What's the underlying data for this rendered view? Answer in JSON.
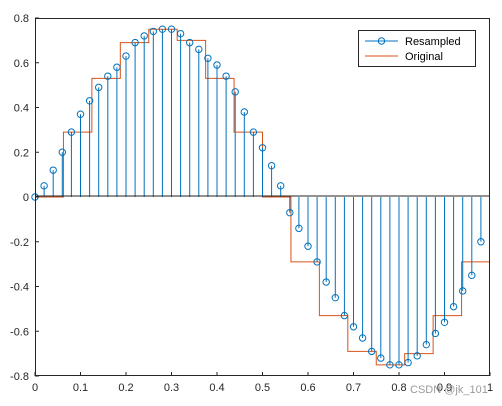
{
  "chart_data": {
    "type": "line",
    "title": "",
    "xlabel": "",
    "ylabel": "",
    "xlim": [
      0,
      1
    ],
    "ylim": [
      -0.8,
      0.8
    ],
    "xticks": [
      0,
      0.1,
      0.2,
      0.3,
      0.4,
      0.5,
      0.6,
      0.7,
      0.8,
      0.9,
      1
    ],
    "xtick_labels": [
      "0",
      "0.1",
      "0.2",
      "0.3",
      "0.4",
      "0.5",
      "0.6",
      "0.7",
      "0.8",
      "0.9",
      "1"
    ],
    "yticks": [
      -0.8,
      -0.6,
      -0.4,
      -0.2,
      0,
      0.2,
      0.4,
      0.6,
      0.8
    ],
    "ytick_labels": [
      "-0.8",
      "-0.6",
      "-0.4",
      "-0.2",
      "0",
      "0.2",
      "0.4",
      "0.6",
      "0.8"
    ],
    "grid": false,
    "legend_position": "top-right",
    "colors": {
      "resampled": "#0072BD",
      "original": "#D95319"
    },
    "series": [
      {
        "name": "Resampled",
        "style": "stem",
        "x": [
          0,
          0.02,
          0.04,
          0.06,
          0.08,
          0.1,
          0.12,
          0.14,
          0.16,
          0.18,
          0.2,
          0.22,
          0.24,
          0.26,
          0.28,
          0.3,
          0.32,
          0.34,
          0.36,
          0.38,
          0.4,
          0.42,
          0.44,
          0.46,
          0.48,
          0.5,
          0.52,
          0.54,
          0.56,
          0.58,
          0.6,
          0.62,
          0.64,
          0.66,
          0.68,
          0.7,
          0.72,
          0.74,
          0.76,
          0.78,
          0.8,
          0.82,
          0.84,
          0.86,
          0.88,
          0.9,
          0.92,
          0.94,
          0.96,
          0.98
        ],
        "values": [
          0,
          0.05,
          0.12,
          0.2,
          0.29,
          0.37,
          0.43,
          0.49,
          0.54,
          0.58,
          0.63,
          0.69,
          0.72,
          0.74,
          0.75,
          0.75,
          0.73,
          0.69,
          0.66,
          0.62,
          0.59,
          0.54,
          0.47,
          0.38,
          0.29,
          0.22,
          0.14,
          0.05,
          -0.07,
          -0.14,
          -0.22,
          -0.29,
          -0.38,
          -0.45,
          -0.53,
          -0.58,
          -0.63,
          -0.69,
          -0.72,
          -0.75,
          -0.75,
          -0.74,
          -0.71,
          -0.66,
          -0.61,
          -0.56,
          -0.49,
          -0.42,
          -0.35,
          -0.2
        ]
      },
      {
        "name": "Original",
        "style": "stairs",
        "x": [
          0,
          0.0625,
          0.125,
          0.1875,
          0.25,
          0.3125,
          0.375,
          0.4375,
          0.5,
          0.5625,
          0.625,
          0.6875,
          0.75,
          0.8125,
          0.875,
          0.9375,
          1
        ],
        "values": [
          0,
          0.29,
          0.53,
          0.69,
          0.75,
          0.7,
          0.53,
          0.29,
          0,
          -0.29,
          -0.53,
          -0.69,
          -0.75,
          -0.7,
          -0.53,
          -0.29,
          -0.29
        ]
      }
    ]
  },
  "watermark": "CSDN @jk_101"
}
